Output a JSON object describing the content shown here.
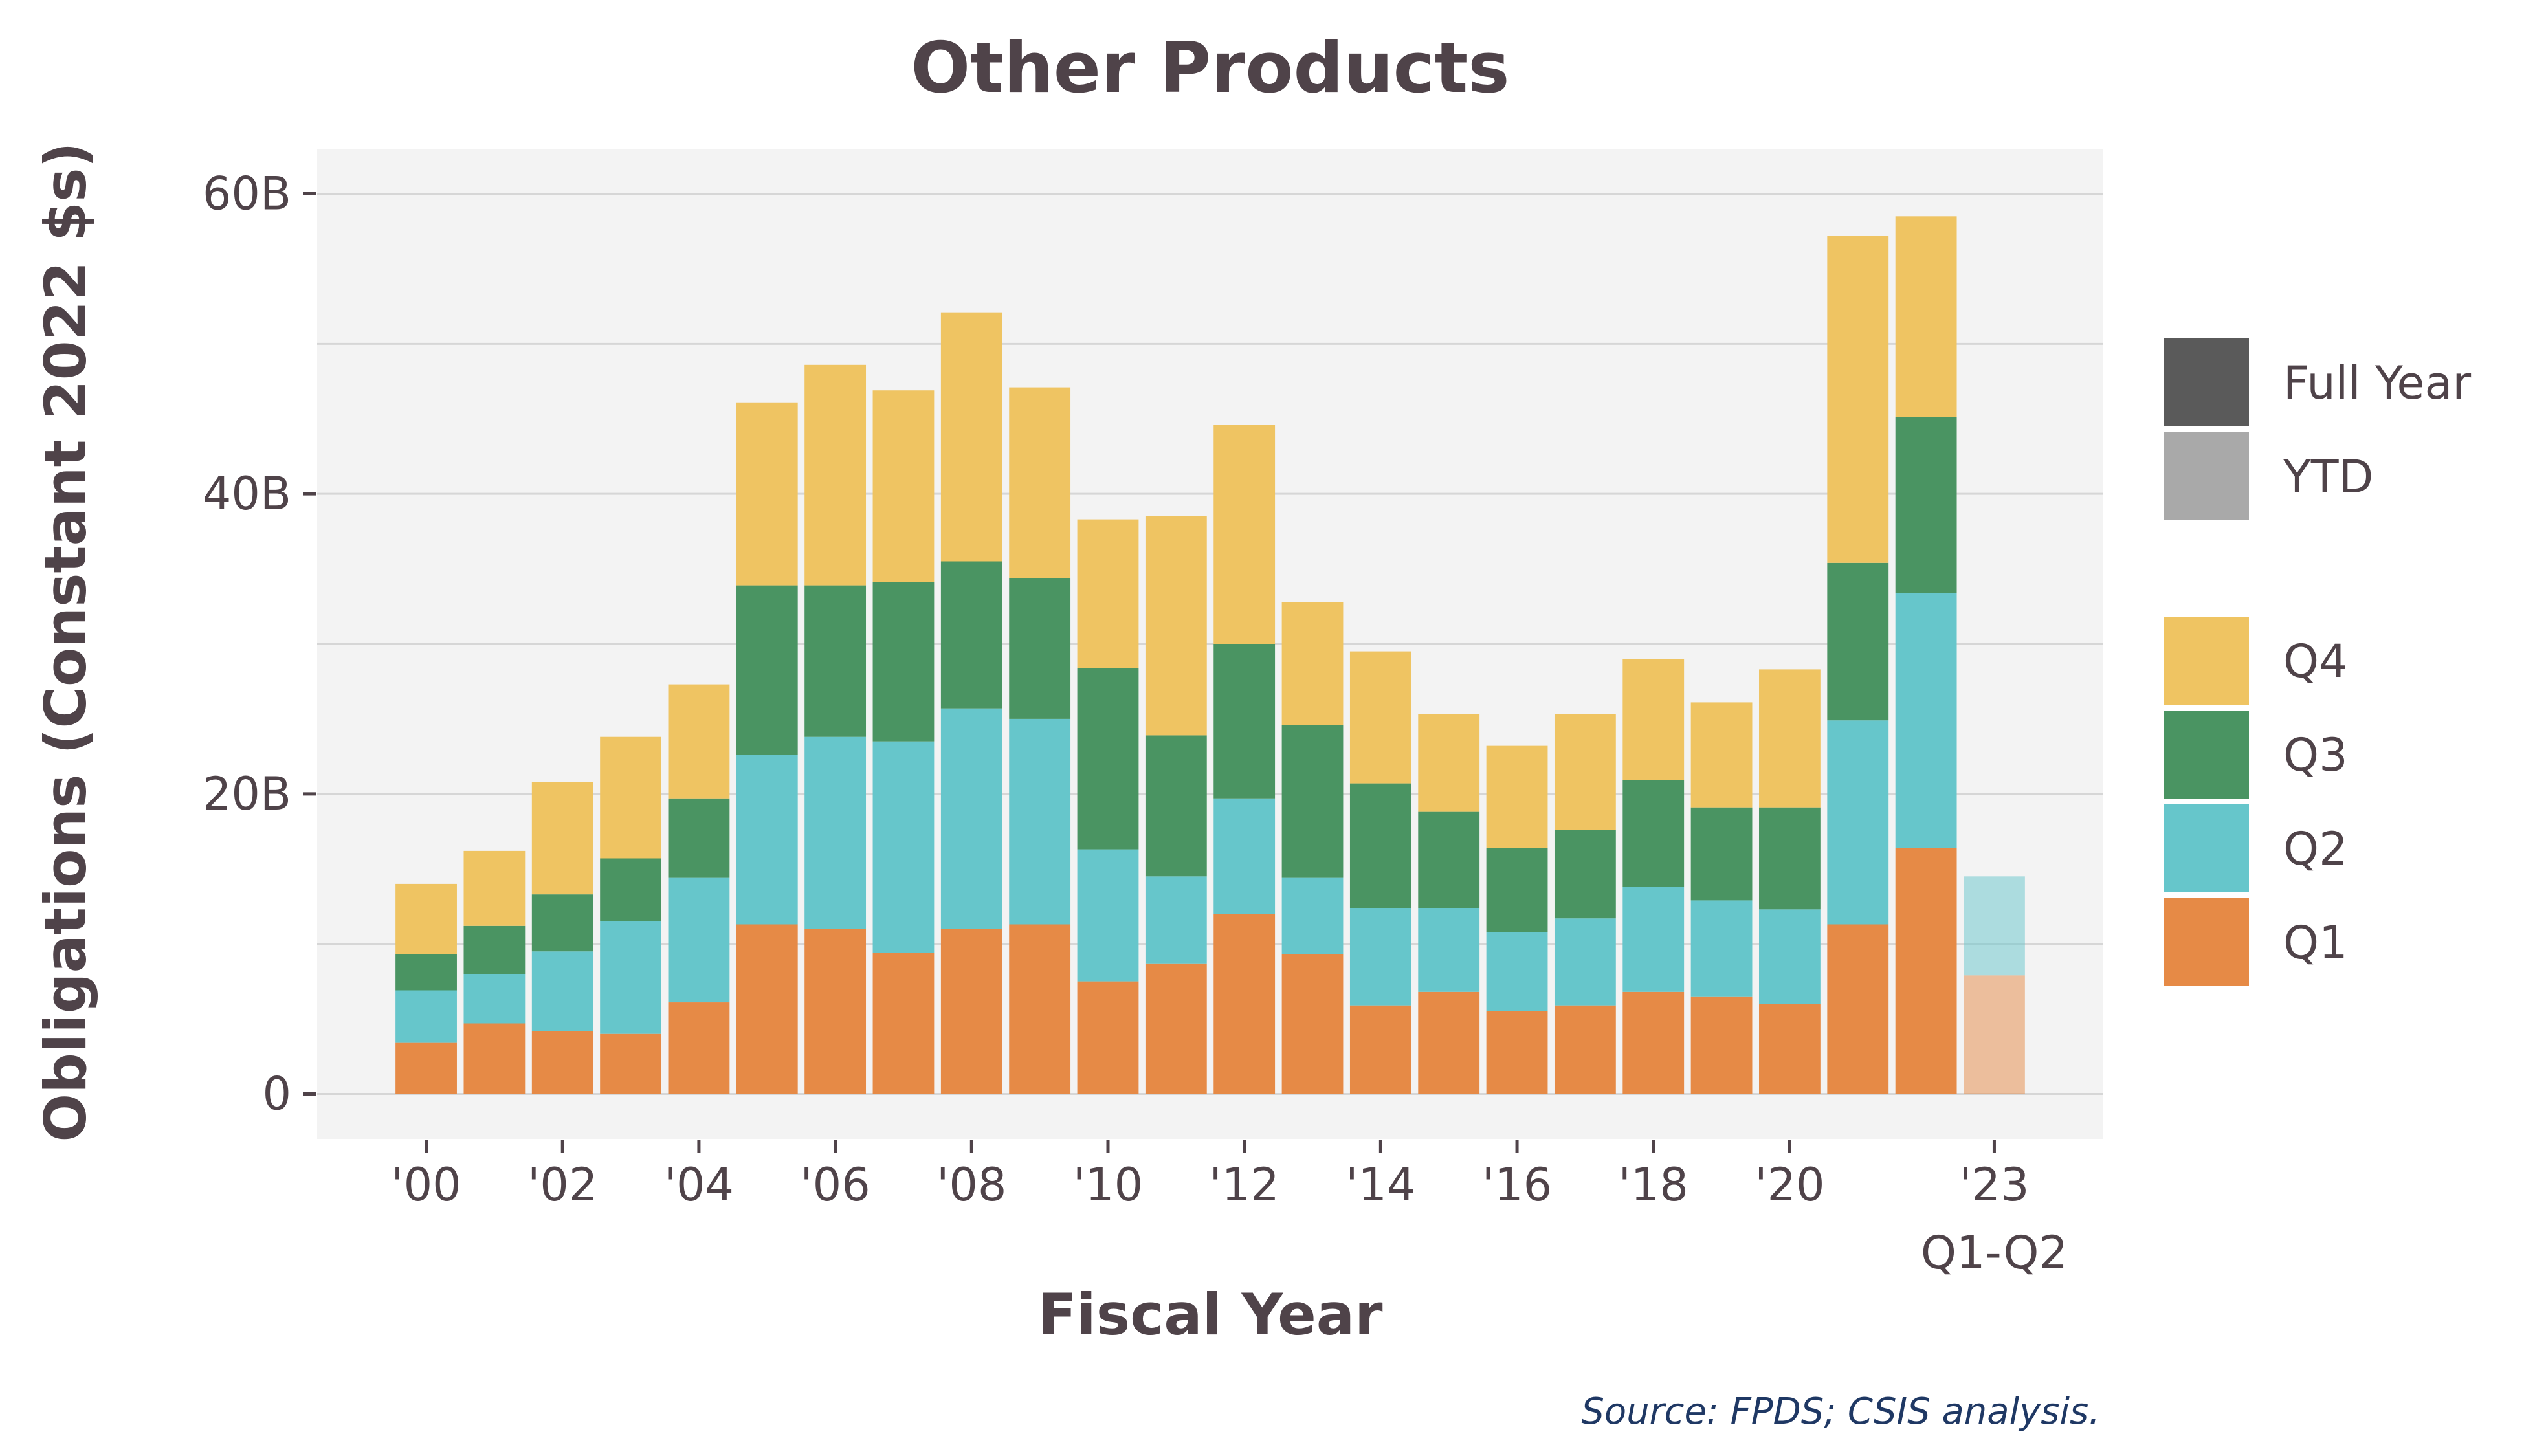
{
  "chart_data": {
    "type": "bar",
    "stacked": true,
    "title": "Other Products",
    "xlabel": "Fiscal Year",
    "ylabel": "Obligations (Constant 2022 $s)",
    "caption": "Source: FPDS; CSIS analysis.",
    "ylim": [
      -3,
      63
    ],
    "y_ticks": [
      {
        "value": 0,
        "label": "0"
      },
      {
        "value": 20,
        "label": "20B"
      },
      {
        "value": 40,
        "label": "40B"
      },
      {
        "value": 60,
        "label": "60B"
      }
    ],
    "y_gridlines": [
      0,
      10,
      20,
      30,
      40,
      50,
      60
    ],
    "grid": true,
    "background": "#f3f3f3",
    "categories": [
      "2000",
      "2001",
      "2002",
      "2003",
      "2004",
      "2005",
      "2006",
      "2007",
      "2008",
      "2009",
      "2010",
      "2011",
      "2012",
      "2013",
      "2014",
      "2015",
      "2016",
      "2017",
      "2018",
      "2019",
      "2020",
      "2021",
      "2022",
      "2023"
    ],
    "x_tick_labels": [
      {
        "category": "2000",
        "label": "'00"
      },
      {
        "category": "2002",
        "label": "'02"
      },
      {
        "category": "2004",
        "label": "'04"
      },
      {
        "category": "2006",
        "label": "'06"
      },
      {
        "category": "2008",
        "label": "'08"
      },
      {
        "category": "2010",
        "label": "'10"
      },
      {
        "category": "2012",
        "label": "'12"
      },
      {
        "category": "2014",
        "label": "'14"
      },
      {
        "category": "2016",
        "label": "'16"
      },
      {
        "category": "2018",
        "label": "'18"
      },
      {
        "category": "2020",
        "label": "'20"
      },
      {
        "category": "2023",
        "label": "'23",
        "sublabel": "Q1-Q2"
      }
    ],
    "period_type": [
      "Full Year",
      "Full Year",
      "Full Year",
      "Full Year",
      "Full Year",
      "Full Year",
      "Full Year",
      "Full Year",
      "Full Year",
      "Full Year",
      "Full Year",
      "Full Year",
      "Full Year",
      "Full Year",
      "Full Year",
      "Full Year",
      "Full Year",
      "Full Year",
      "Full Year",
      "Full Year",
      "Full Year",
      "Full Year",
      "Full Year",
      "YTD"
    ],
    "series": [
      {
        "name": "Q1",
        "color": "#e68a46",
        "values": [
          3.4,
          4.7,
          4.2,
          4.0,
          6.1,
          11.3,
          11.0,
          9.4,
          11.0,
          11.3,
          7.5,
          8.7,
          12.0,
          9.3,
          5.9,
          6.8,
          5.5,
          5.9,
          6.8,
          6.5,
          6.0,
          11.3,
          16.4,
          7.9
        ]
      },
      {
        "name": "Q2",
        "color": "#66c6cb",
        "values": [
          3.5,
          3.3,
          5.3,
          7.5,
          8.3,
          11.3,
          12.8,
          14.1,
          14.7,
          13.7,
          8.8,
          5.8,
          7.7,
          5.1,
          6.5,
          5.6,
          5.3,
          5.8,
          7.0,
          6.4,
          6.3,
          13.6,
          17.0,
          6.6
        ]
      },
      {
        "name": "Q3",
        "color": "#4a9462",
        "values": [
          2.4,
          3.2,
          3.8,
          4.2,
          5.3,
          11.3,
          10.1,
          10.6,
          9.8,
          9.4,
          12.1,
          9.4,
          10.3,
          10.2,
          8.3,
          6.4,
          5.6,
          5.9,
          7.1,
          6.2,
          6.8,
          10.5,
          11.7,
          0
        ]
      },
      {
        "name": "Q4",
        "color": "#efc462",
        "values": [
          4.7,
          5.0,
          7.5,
          8.1,
          7.6,
          12.2,
          14.7,
          12.8,
          16.6,
          12.7,
          9.9,
          14.6,
          14.6,
          8.2,
          8.8,
          6.5,
          6.8,
          7.7,
          8.1,
          7.0,
          9.2,
          21.8,
          13.4,
          0
        ]
      }
    ],
    "legend": {
      "position": "right",
      "period_items": [
        {
          "label": "Full Year",
          "color": "#5a5a5a"
        },
        {
          "label": "YTD",
          "color": "#a9a9a9"
        }
      ],
      "series_items": [
        {
          "label": "Q4",
          "color": "#efc462"
        },
        {
          "label": "Q3",
          "color": "#4a9462"
        },
        {
          "label": "Q2",
          "color": "#66c6cb"
        },
        {
          "label": "Q1",
          "color": "#e68a46"
        }
      ]
    }
  }
}
